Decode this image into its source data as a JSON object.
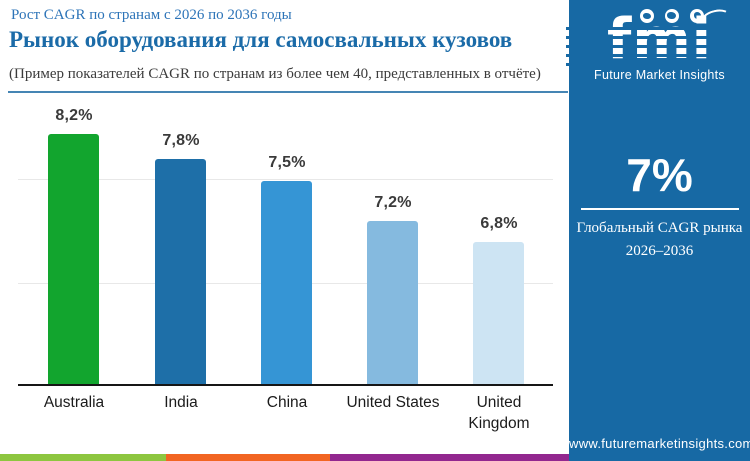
{
  "header": {
    "kicker": "Рост CAGR по странам с 2026 по 2036 годы",
    "title": "Рынок оборудования для самосвальных кузовов",
    "subtitle": "(Пример показателей CAGR по странам из более чем 40, представленных в отчёте)"
  },
  "chart_data": {
    "type": "bar",
    "title": "",
    "xlabel": "",
    "ylabel": "",
    "categories": [
      "Australia",
      "India",
      "China",
      "United States",
      "United Kingdom"
    ],
    "values": [
      8.2,
      7.8,
      7.5,
      7.2,
      6.8
    ],
    "value_labels": [
      "8,2%",
      "7,8%",
      "7,5%",
      "7,2%",
      "6,8%"
    ],
    "bar_colors": [
      "#12a52e",
      "#1e6fa8",
      "#3595d5",
      "#85badf",
      "#cde4f3"
    ],
    "ylim": [
      4.9,
      8.8
    ],
    "grid": true,
    "legend": false
  },
  "sidebar": {
    "background": "#1769a4",
    "logo": {
      "text": "fmi",
      "tagline": "Future Market Insights",
      "icons": [
        "americas-globe-icon",
        "europe-globe-icon",
        "asia-pacific-globe-icon"
      ]
    },
    "stat_value": "7%",
    "stat_caption_line1": "Глобальный CAGR рынка",
    "stat_caption_line2": "2026–2036",
    "website": "www.futuremarketinsights.com"
  },
  "footer": {
    "stripe_colors": [
      "#8dc63f",
      "#f26522",
      "#92278f"
    ]
  },
  "colors": {
    "title_blue": "#1b6ba8",
    "kicker_blue": "#2d74b8",
    "value_label_gray": "#3a3a3a"
  }
}
